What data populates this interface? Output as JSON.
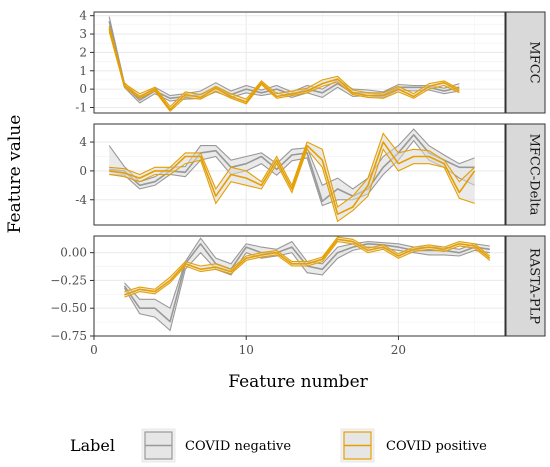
{
  "chart_data": {
    "type": "line",
    "xlabel": "Feature number",
    "ylabel": "Feature value",
    "xlim": [
      0,
      27
    ],
    "x_ticks": [
      0,
      10,
      20
    ],
    "grid": true,
    "facets": [
      {
        "label": "MFCC",
        "ylim": [
          -1.3,
          4.2
        ],
        "y_ticks": [
          -1,
          0,
          1,
          2,
          3,
          4
        ],
        "x": [
          1,
          2,
          3,
          4,
          5,
          6,
          7,
          8,
          9,
          10,
          11,
          12,
          13,
          14,
          15,
          16,
          17,
          18,
          19,
          20,
          21,
          22,
          23,
          24
        ],
        "series": [
          {
            "name": "COVID negative",
            "color": "#999999",
            "mean": [
              3.7,
              0.2,
              -0.6,
              -0.1,
              -0.5,
              -0.4,
              -0.3,
              0.1,
              -0.3,
              0.0,
              -0.2,
              0.0,
              -0.3,
              0.0,
              -0.2,
              0.3,
              -0.2,
              -0.2,
              -0.3,
              0.1,
              0.1,
              0.1,
              -0.1,
              0.1
            ],
            "upper": [
              3.95,
              0.35,
              -0.45,
              0.1,
              -0.35,
              -0.25,
              -0.1,
              0.35,
              -0.1,
              0.2,
              -0.05,
              0.2,
              -0.15,
              0.2,
              0.0,
              0.5,
              0.0,
              -0.05,
              -0.15,
              0.25,
              0.2,
              0.2,
              0.05,
              0.3
            ],
            "lower": [
              3.4,
              0.1,
              -0.75,
              -0.25,
              -0.65,
              -0.55,
              -0.5,
              -0.15,
              -0.45,
              -0.2,
              -0.35,
              -0.2,
              -0.45,
              -0.2,
              -0.45,
              0.1,
              -0.4,
              -0.35,
              -0.45,
              -0.05,
              -0.1,
              -0.05,
              -0.25,
              -0.1
            ]
          },
          {
            "name": "COVID positive",
            "color": "#e69f00",
            "mean": [
              3.3,
              0.2,
              -0.4,
              0.0,
              -1.1,
              -0.3,
              -0.45,
              0.05,
              -0.4,
              -0.7,
              0.35,
              -0.4,
              -0.25,
              -0.1,
              0.3,
              0.55,
              -0.2,
              -0.35,
              -0.35,
              0.0,
              -0.4,
              0.15,
              0.35,
              -0.1
            ],
            "upper": [
              3.45,
              0.3,
              -0.25,
              0.1,
              -0.95,
              -0.15,
              -0.3,
              0.15,
              -0.25,
              -0.55,
              0.45,
              -0.25,
              -0.1,
              0.05,
              0.5,
              0.7,
              -0.05,
              -0.2,
              -0.2,
              0.15,
              -0.25,
              0.3,
              0.45,
              0.0
            ],
            "lower": [
              3.15,
              0.1,
              -0.5,
              -0.1,
              -1.2,
              -0.45,
              -0.55,
              -0.1,
              -0.5,
              -0.8,
              0.25,
              -0.5,
              -0.35,
              -0.2,
              0.15,
              0.4,
              -0.3,
              -0.45,
              -0.5,
              -0.15,
              -0.5,
              0.0,
              0.2,
              -0.2
            ]
          }
        ]
      },
      {
        "label": "MFCC-Delta",
        "ylim": [
          -7.5,
          6.5
        ],
        "y_ticks": [
          -4,
          0,
          4
        ],
        "x": [
          1,
          2,
          3,
          4,
          5,
          6,
          7,
          8,
          9,
          10,
          11,
          12,
          13,
          14,
          15,
          16,
          17,
          18,
          19,
          20,
          21,
          22,
          23,
          24,
          25
        ],
        "series": [
          {
            "name": "COVID negative",
            "color": "#999999",
            "mean": [
              0.2,
              0.0,
              -2.0,
              -1.5,
              0.0,
              -0.2,
              2.5,
              2.8,
              0.5,
              1.0,
              2.0,
              0.2,
              2.2,
              2.5,
              -4.2,
              -2.5,
              -3.5,
              -2.5,
              0.5,
              2.5,
              5.0,
              2.5,
              1.5,
              0.5,
              0.5
            ],
            "upper": [
              3.5,
              0.6,
              -1.5,
              -0.8,
              0.5,
              0.6,
              3.5,
              3.5,
              1.5,
              2.0,
              2.5,
              1.0,
              3.0,
              3.2,
              -2.0,
              -1.0,
              -2.5,
              -1.0,
              2.0,
              3.5,
              5.8,
              3.5,
              2.2,
              1.0,
              1.8
            ],
            "lower": [
              -0.5,
              -0.6,
              -2.5,
              -2.0,
              -0.5,
              -0.8,
              1.5,
              2.0,
              -0.5,
              0.0,
              1.0,
              -0.6,
              1.4,
              1.8,
              -4.8,
              -4.0,
              -4.0,
              -3.2,
              -0.5,
              1.5,
              4.2,
              1.5,
              0.5,
              -1.0,
              -2.0
            ]
          },
          {
            "name": "COVID positive",
            "color": "#e69f00",
            "mean": [
              0.0,
              -0.3,
              -1.0,
              0.0,
              0.0,
              2.0,
              2.0,
              -3.5,
              -0.5,
              -1.0,
              -2.0,
              1.5,
              -2.5,
              3.5,
              1.5,
              -6.0,
              -5.0,
              -2.0,
              4.0,
              1.0,
              2.0,
              2.0,
              1.0,
              -3.0,
              0.0
            ],
            "upper": [
              0.5,
              0.3,
              -0.5,
              0.5,
              0.5,
              2.5,
              2.5,
              -2.5,
              0.5,
              0.0,
              -1.5,
              2.0,
              -2.0,
              4.0,
              3.0,
              -5.0,
              -3.5,
              -1.0,
              5.2,
              2.5,
              3.0,
              2.8,
              1.5,
              -1.5,
              0.5
            ],
            "lower": [
              -0.5,
              -0.8,
              -1.5,
              -0.5,
              -0.5,
              1.0,
              1.5,
              -4.5,
              -1.5,
              -2.0,
              -2.5,
              1.0,
              -3.0,
              3.0,
              0.5,
              -7.0,
              -5.5,
              -3.5,
              3.0,
              0.0,
              1.0,
              1.0,
              0.5,
              -3.8,
              -4.5
            ]
          }
        ]
      },
      {
        "label": "RASTA-PLP",
        "ylim": [
          -0.75,
          0.15
        ],
        "y_ticks": [
          0.0,
          -0.25,
          -0.5,
          -0.75
        ],
        "y_tick_labels": [
          "0.00",
          "−0.25",
          "−0.50",
          "−0.75"
        ],
        "x": [
          2,
          3,
          4,
          5,
          6,
          7,
          8,
          9,
          10,
          11,
          12,
          13,
          14,
          15,
          16,
          17,
          18,
          19,
          20,
          21,
          22,
          23,
          24,
          25,
          26
        ],
        "series": [
          {
            "name": "COVID negative",
            "color": "#999999",
            "mean": [
              -0.3,
              -0.5,
              -0.5,
              -0.62,
              -0.1,
              0.08,
              -0.1,
              -0.15,
              0.05,
              0.0,
              0.0,
              0.05,
              -0.12,
              -0.15,
              0.0,
              0.05,
              0.08,
              0.07,
              0.05,
              0.02,
              0.02,
              0.02,
              0.0,
              0.05,
              0.03
            ],
            "upper": [
              -0.27,
              -0.42,
              -0.42,
              -0.5,
              -0.08,
              0.13,
              -0.05,
              -0.1,
              0.08,
              0.05,
              0.03,
              0.1,
              -0.08,
              -0.1,
              0.05,
              0.08,
              0.1,
              0.09,
              0.08,
              0.05,
              0.05,
              0.05,
              0.03,
              0.08,
              0.06
            ],
            "lower": [
              -0.32,
              -0.55,
              -0.58,
              -0.7,
              -0.15,
              0.0,
              -0.15,
              -0.2,
              0.0,
              -0.05,
              -0.03,
              0.0,
              -0.18,
              -0.2,
              -0.05,
              0.02,
              0.05,
              0.04,
              0.02,
              0.0,
              -0.02,
              -0.02,
              -0.03,
              0.02,
              0.0
            ]
          },
          {
            "name": "COVID positive",
            "color": "#e69f00",
            "mean": [
              -0.38,
              -0.33,
              -0.35,
              -0.25,
              -0.1,
              -0.15,
              -0.13,
              -0.17,
              -0.05,
              -0.02,
              0.0,
              -0.1,
              -0.1,
              -0.06,
              0.12,
              0.1,
              0.02,
              0.05,
              -0.03,
              0.03,
              0.05,
              0.03,
              0.08,
              0.06,
              -0.05
            ],
            "upper": [
              -0.35,
              -0.31,
              -0.33,
              -0.22,
              -0.08,
              -0.12,
              -0.1,
              -0.15,
              -0.03,
              0.0,
              0.02,
              -0.08,
              -0.08,
              -0.04,
              0.14,
              0.12,
              0.04,
              0.07,
              -0.01,
              0.05,
              0.07,
              0.05,
              0.1,
              0.08,
              -0.03
            ],
            "lower": [
              -0.4,
              -0.35,
              -0.37,
              -0.27,
              -0.12,
              -0.17,
              -0.15,
              -0.19,
              -0.07,
              -0.04,
              -0.02,
              -0.12,
              -0.12,
              -0.08,
              0.1,
              0.08,
              0.0,
              0.03,
              -0.05,
              0.01,
              0.03,
              0.01,
              0.06,
              0.04,
              -0.07
            ]
          }
        ]
      }
    ],
    "legend": {
      "title": "Label",
      "placement": "bottom",
      "entries": [
        {
          "label": "COVID negative",
          "color": "#999999"
        },
        {
          "label": "COVID positive",
          "color": "#e69f00"
        }
      ]
    }
  }
}
